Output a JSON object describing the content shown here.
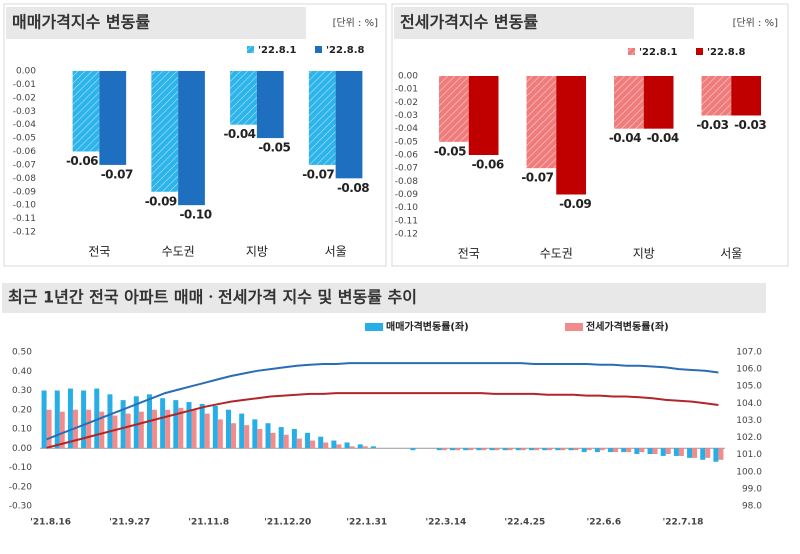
{
  "chart_data": [
    {
      "type": "grouped-bar",
      "title": "매매가격지수 변동률",
      "unit": "[단위 : %]",
      "categories": [
        "전국",
        "수도권",
        "지방",
        "서울"
      ],
      "series": [
        {
          "name": "'22.8.1",
          "color": "#2db4ea",
          "hatch": true,
          "values": [
            -0.06,
            -0.09,
            -0.04,
            -0.07
          ]
        },
        {
          "name": "'22.8.8",
          "color": "#1f6fc0",
          "values": [
            -0.07,
            -0.1,
            -0.05,
            -0.08
          ],
          "value_labels": [
            "-0.07",
            "-0.10",
            "-0.05",
            "-0.08"
          ]
        }
      ],
      "ylim": [
        -0.12,
        0
      ],
      "yticks": [
        {
          "value": 0,
          "label": "0.00"
        },
        {
          "value": -0.01,
          "label": "-0.01"
        },
        {
          "value": -0.02,
          "label": "-0.02"
        },
        {
          "value": -0.03,
          "label": "-0.03"
        },
        {
          "value": -0.04,
          "label": "-0.04"
        },
        {
          "value": -0.05,
          "label": "-0.05"
        },
        {
          "value": -0.06,
          "label": "-0.06"
        },
        {
          "value": -0.07,
          "label": "-0.07"
        },
        {
          "value": -0.08,
          "label": "-0.08"
        },
        {
          "value": -0.09,
          "label": "-0.09"
        },
        {
          "value": -0.1,
          "label": "-0.10"
        },
        {
          "value": -0.11,
          "label": "-0.11"
        },
        {
          "value": -0.12,
          "label": "-0.12"
        }
      ],
      "legend": "top-right"
    },
    {
      "type": "grouped-bar",
      "title": "전세가격지수 변동률",
      "unit": "[단위 : %]",
      "categories": [
        "전국",
        "수도권",
        "지방",
        "서울"
      ],
      "series": [
        {
          "name": "'22.8.1",
          "color": "#f07b7b",
          "hatch": true,
          "values": [
            -0.05,
            -0.07,
            -0.04,
            -0.03
          ]
        },
        {
          "name": "'22.8.8",
          "color": "#c00000",
          "values": [
            -0.06,
            -0.09,
            -0.04,
            -0.03
          ]
        }
      ],
      "ylim": [
        -0.12,
        0
      ],
      "yticks": [
        {
          "value": 0,
          "label": "0.00"
        },
        {
          "value": -0.01,
          "label": "-0.01"
        },
        {
          "value": -0.02,
          "label": "-0.02"
        },
        {
          "value": -0.03,
          "label": "-0.03"
        },
        {
          "value": -0.04,
          "label": "-0.04"
        },
        {
          "value": -0.05,
          "label": "-0.05"
        },
        {
          "value": -0.06,
          "label": "-0.06"
        },
        {
          "value": -0.07,
          "label": "-0.07"
        },
        {
          "value": -0.08,
          "label": "-0.08"
        },
        {
          "value": -0.09,
          "label": "-0.09"
        },
        {
          "value": -0.1,
          "label": "-0.10"
        },
        {
          "value": -0.11,
          "label": "-0.11"
        },
        {
          "value": -0.12,
          "label": "-0.12"
        }
      ],
      "legend": "top-right"
    },
    {
      "type": "combo",
      "title": "최근 1년간 전국 아파트 매매ㆍ전세가격 지수 및 변동률 추이",
      "categories": [
        "'21.8.16",
        null,
        null,
        null,
        null,
        null,
        "'21.9.27",
        null,
        null,
        null,
        null,
        null,
        "'21.11.8",
        null,
        null,
        null,
        null,
        null,
        "'21.12.20",
        null,
        null,
        null,
        null,
        null,
        "'22.1.31",
        null,
        null,
        null,
        null,
        null,
        "'22.3.14",
        null,
        null,
        null,
        null,
        null,
        "'22.4.25",
        null,
        null,
        null,
        null,
        null,
        "'22.6.6",
        null,
        null,
        null,
        null,
        null,
        "'22.7.18",
        null,
        null,
        null
      ],
      "series": [
        {
          "name": "매매가격변동률(좌)",
          "color": "#27aee6",
          "type": "bar",
          "values": [
            0.3,
            0.3,
            0.31,
            0.3,
            0.31,
            0.28,
            0.25,
            0.27,
            0.28,
            0.26,
            0.25,
            0.24,
            0.23,
            0.22,
            0.2,
            0.18,
            0.15,
            0.13,
            0.11,
            0.1,
            0.08,
            0.06,
            0.04,
            0.03,
            0.02,
            0.01,
            0,
            0,
            -0.01,
            0,
            -0.01,
            -0.01,
            -0.01,
            -0.01,
            -0.01,
            -0.01,
            -0.01,
            -0.01,
            -0.01,
            -0.01,
            -0.01,
            -0.02,
            -0.02,
            -0.02,
            -0.02,
            -0.03,
            -0.03,
            -0.04,
            -0.04,
            -0.05,
            -0.06,
            -0.07
          ]
        },
        {
          "name": "전세가격변동률(좌)",
          "color": "#f28b8b",
          "type": "bar",
          "values": [
            0.2,
            0.19,
            0.2,
            0.2,
            0.19,
            0.17,
            0.18,
            0.19,
            0.2,
            0.2,
            0.21,
            0.2,
            0.18,
            0.15,
            0.13,
            0.12,
            0.1,
            0.08,
            0.07,
            0.05,
            0.04,
            0.03,
            0.02,
            0.01,
            0.01,
            0,
            0,
            0,
            0,
            0,
            -0.01,
            -0.01,
            -0.01,
            -0.01,
            -0.01,
            -0.01,
            -0.01,
            -0.01,
            -0.01,
            -0.01,
            -0.01,
            -0.01,
            -0.01,
            -0.02,
            -0.02,
            -0.02,
            -0.03,
            -0.03,
            -0.04,
            -0.05,
            -0.05,
            -0.06
          ]
        },
        {
          "color": "#2a6db5",
          "type": "line",
          "axis": "y2",
          "values": [
            101.9,
            102.2,
            102.5,
            102.8,
            103.1,
            103.4,
            103.7,
            104.0,
            104.3,
            104.6,
            104.8,
            105.0,
            105.2,
            105.4,
            105.6,
            105.75,
            105.9,
            106.0,
            106.1,
            106.2,
            106.25,
            106.3,
            106.3,
            106.35,
            106.35,
            106.35,
            106.35,
            106.35,
            106.35,
            106.35,
            106.35,
            106.35,
            106.35,
            106.35,
            106.35,
            106.35,
            106.35,
            106.3,
            106.3,
            106.3,
            106.3,
            106.3,
            106.25,
            106.25,
            106.2,
            106.2,
            106.15,
            106.1,
            106.0,
            105.95,
            105.9,
            105.8
          ]
        },
        {
          "color": "#b2262a",
          "type": "line",
          "axis": "y2",
          "values": [
            101.4,
            101.6,
            101.8,
            102.0,
            102.2,
            102.4,
            102.6,
            102.8,
            103.0,
            103.2,
            103.4,
            103.6,
            103.8,
            103.95,
            104.1,
            104.2,
            104.3,
            104.4,
            104.45,
            104.5,
            104.55,
            104.55,
            104.6,
            104.6,
            104.6,
            104.6,
            104.6,
            104.6,
            104.6,
            104.6,
            104.6,
            104.6,
            104.6,
            104.6,
            104.55,
            104.55,
            104.55,
            104.55,
            104.5,
            104.5,
            104.5,
            104.45,
            104.45,
            104.4,
            104.4,
            104.35,
            104.3,
            104.2,
            104.15,
            104.1,
            104.0,
            103.9
          ]
        }
      ],
      "ylim": [
        -0.3,
        0.5
      ],
      "yticks": [
        {
          "value": -0.3,
          "label": "-0.30"
        },
        {
          "value": -0.2,
          "label": "-0.20"
        },
        {
          "value": -0.1,
          "label": "-0.10"
        },
        {
          "value": 0,
          "label": "0.00"
        },
        {
          "value": 0.1,
          "label": "0.10"
        },
        {
          "value": 0.2,
          "label": "0.20"
        },
        {
          "value": 0.3,
          "label": "0.30"
        },
        {
          "value": 0.4,
          "label": "0.40"
        },
        {
          "value": 0.5,
          "label": "0.50"
        }
      ],
      "y2lim": [
        98,
        107
      ],
      "y2ticks": [
        {
          "value": 98,
          "label": "98.0"
        },
        {
          "value": 99,
          "label": "99.0"
        },
        {
          "value": 100,
          "label": "100.0"
        },
        {
          "value": 101,
          "label": "101.0"
        },
        {
          "value": 102,
          "label": "102.0"
        },
        {
          "value": 103,
          "label": "103.0"
        },
        {
          "value": 104,
          "label": "104.0"
        },
        {
          "value": 105,
          "label": "105.0"
        },
        {
          "value": 106,
          "label": "106.0"
        },
        {
          "value": 107,
          "label": "107.0"
        }
      ],
      "legend": "top"
    }
  ]
}
